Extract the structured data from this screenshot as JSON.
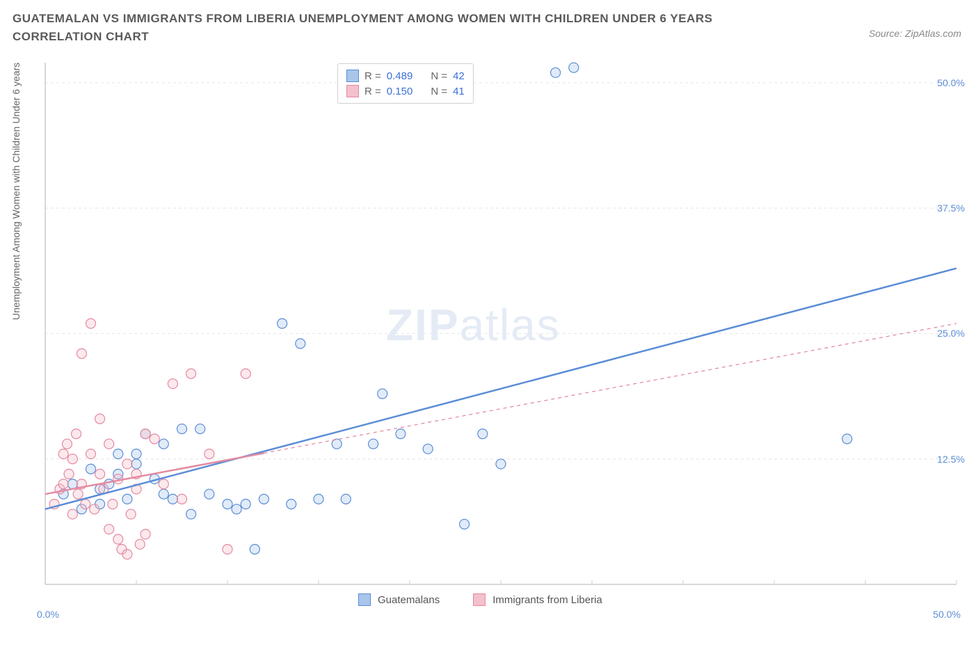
{
  "title": "GUATEMALAN VS IMMIGRANTS FROM LIBERIA UNEMPLOYMENT AMONG WOMEN WITH CHILDREN UNDER 6 YEARS CORRELATION CHART",
  "source": "Source: ZipAtlas.com",
  "ylabel": "Unemployment Among Women with Children Under 6 years",
  "watermark_zip": "ZIP",
  "watermark_atlas": "atlas",
  "chart": {
    "type": "scatter",
    "xlim": [
      0,
      50
    ],
    "ylim": [
      0,
      52
    ],
    "xtick_start": 0,
    "xtick_end": 50,
    "yticks": [
      12.5,
      25.0,
      37.5,
      50.0
    ],
    "ytick_labels": [
      "12.5%",
      "25.0%",
      "37.5%",
      "50.0%"
    ],
    "xtick_labels": {
      "start": "0.0%",
      "end": "50.0%"
    },
    "grid_color": "#e5e5e5",
    "axis_color": "#cccccc",
    "background_color": "#ffffff",
    "marker_radius": 7,
    "marker_stroke_width": 1.2,
    "marker_fill_opacity": 0.35,
    "trendline_width_solid": 2.5,
    "trendline_width_dashed": 1.3,
    "series": [
      {
        "name": "Guatemalans",
        "color_stroke": "#5b8dd6",
        "color_fill": "#a9c5ea",
        "R": "0.489",
        "N": "42",
        "trend": {
          "x1": 0,
          "y1": 7.5,
          "x2": 50,
          "y2": 31.5,
          "dashed_from_x": null
        },
        "points": [
          [
            1,
            9
          ],
          [
            1.5,
            10
          ],
          [
            2,
            7.5
          ],
          [
            2.5,
            11.5
          ],
          [
            3,
            8
          ],
          [
            3.5,
            10
          ],
          [
            4,
            11
          ],
          [
            4.5,
            8.5
          ],
          [
            5,
            12
          ],
          [
            5.5,
            15
          ],
          [
            6,
            10.5
          ],
          [
            6.5,
            14
          ],
          [
            7,
            8.5
          ],
          [
            7.5,
            15.5
          ],
          [
            8,
            7
          ],
          [
            8.5,
            15.5
          ],
          [
            9,
            9
          ],
          [
            10,
            8
          ],
          [
            10.5,
            7.5
          ],
          [
            11,
            8
          ],
          [
            11.5,
            3.5
          ],
          [
            12,
            8.5
          ],
          [
            13,
            26
          ],
          [
            13.5,
            8
          ],
          [
            14,
            24
          ],
          [
            15,
            8.5
          ],
          [
            16,
            14
          ],
          [
            16.5,
            8.5
          ],
          [
            18,
            14
          ],
          [
            18.5,
            19
          ],
          [
            19.5,
            15
          ],
          [
            21,
            13.5
          ],
          [
            23,
            6
          ],
          [
            24,
            15
          ],
          [
            25,
            12
          ],
          [
            28,
            51
          ],
          [
            29,
            51.5
          ],
          [
            44,
            14.5
          ],
          [
            5,
            13
          ],
          [
            6.5,
            9
          ],
          [
            3,
            9.5
          ],
          [
            4,
            13
          ]
        ]
      },
      {
        "name": "Immigrants from Liberia",
        "color_stroke": "#e48aa0",
        "color_fill": "#f3c0cc",
        "R": "0.150",
        "N": "41",
        "trend": {
          "x1": 0,
          "y1": 9,
          "x2": 50,
          "y2": 26,
          "dashed_from_x": 12
        },
        "points": [
          [
            0.5,
            8
          ],
          [
            0.8,
            9.5
          ],
          [
            1,
            10
          ],
          [
            1,
            13
          ],
          [
            1.2,
            14
          ],
          [
            1.3,
            11
          ],
          [
            1.5,
            12.5
          ],
          [
            1.5,
            7
          ],
          [
            1.7,
            15
          ],
          [
            1.8,
            9
          ],
          [
            2,
            10
          ],
          [
            2,
            23
          ],
          [
            2.2,
            8
          ],
          [
            2.5,
            13
          ],
          [
            2.5,
            26
          ],
          [
            2.7,
            7.5
          ],
          [
            3,
            11
          ],
          [
            3,
            16.5
          ],
          [
            3.2,
            9.5
          ],
          [
            3.5,
            5.5
          ],
          [
            3.5,
            14
          ],
          [
            3.7,
            8
          ],
          [
            4,
            10.5
          ],
          [
            4,
            4.5
          ],
          [
            4.2,
            3.5
          ],
          [
            4.5,
            12
          ],
          [
            4.5,
            3
          ],
          [
            4.7,
            7
          ],
          [
            5,
            9.5
          ],
          [
            5,
            11
          ],
          [
            5.2,
            4
          ],
          [
            5.5,
            15
          ],
          [
            5.5,
            5
          ],
          [
            6,
            14.5
          ],
          [
            6.5,
            10
          ],
          [
            7,
            20
          ],
          [
            7.5,
            8.5
          ],
          [
            8,
            21
          ],
          [
            9,
            13
          ],
          [
            10,
            3.5
          ],
          [
            11,
            21
          ]
        ]
      }
    ]
  },
  "legend_top": {
    "rows": [
      {
        "swatch_fill": "#a9c5ea",
        "swatch_stroke": "#5b8dd6",
        "R_label": "R =",
        "R": "0.489",
        "N_label": "N =",
        "N": "42"
      },
      {
        "swatch_fill": "#f3c0cc",
        "swatch_stroke": "#e48aa0",
        "R_label": "R =",
        "R": "0.150",
        "N_label": "N =",
        "N": "41"
      }
    ]
  },
  "legend_bottom": {
    "items": [
      {
        "swatch_fill": "#a9c5ea",
        "swatch_stroke": "#5b8dd6",
        "label": "Guatemalans"
      },
      {
        "swatch_fill": "#f3c0cc",
        "swatch_stroke": "#e48aa0",
        "label": "Immigrants from Liberia"
      }
    ]
  }
}
